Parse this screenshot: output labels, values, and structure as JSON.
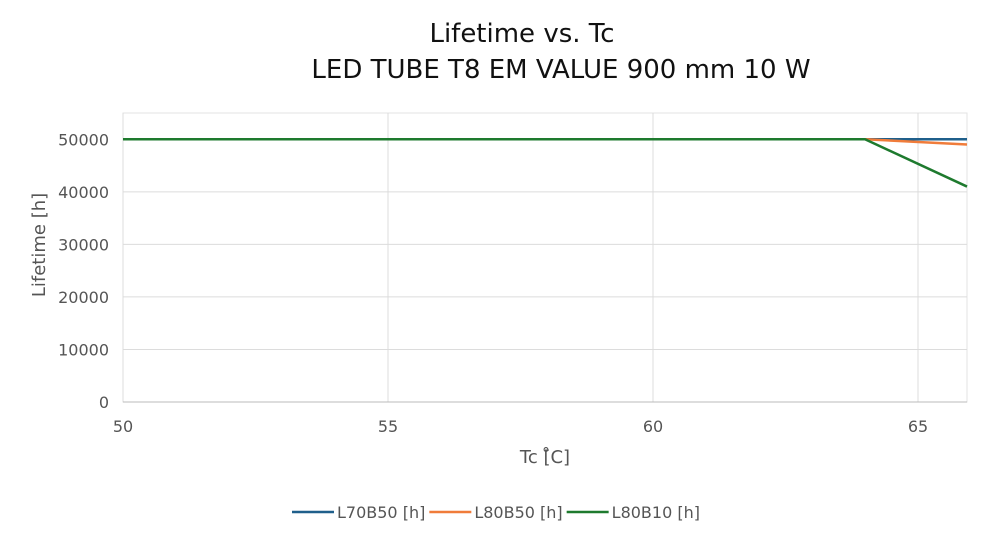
{
  "chart_data": {
    "type": "line",
    "title": "Lifetime vs. Tc",
    "subtitle": "LED TUBE T8 EM VALUE 900 mm 10 W",
    "xlabel": "Tc [̊C]",
    "ylabel": "Lifetime [h]",
    "xlim": [
      50,
      66
    ],
    "ylim": [
      0,
      55000
    ],
    "xticks": [
      50,
      55,
      60,
      65
    ],
    "yticks": [
      0,
      10000,
      20000,
      30000,
      40000,
      50000
    ],
    "grid": true,
    "legend_position": "bottom",
    "series": [
      {
        "name": "L70B50 [h]",
        "color": "#1f5f8b",
        "x": [
          50,
          64,
          66
        ],
        "y": [
          50000,
          50000,
          50000
        ]
      },
      {
        "name": "L80B50 [h]",
        "color": "#f07c3a",
        "x": [
          50,
          64,
          66
        ],
        "y": [
          50000,
          50000,
          49000
        ]
      },
      {
        "name": "L80B10 [h]",
        "color": "#1e7a2e",
        "x": [
          50,
          64,
          66
        ],
        "y": [
          50000,
          50000,
          41000
        ]
      }
    ]
  }
}
